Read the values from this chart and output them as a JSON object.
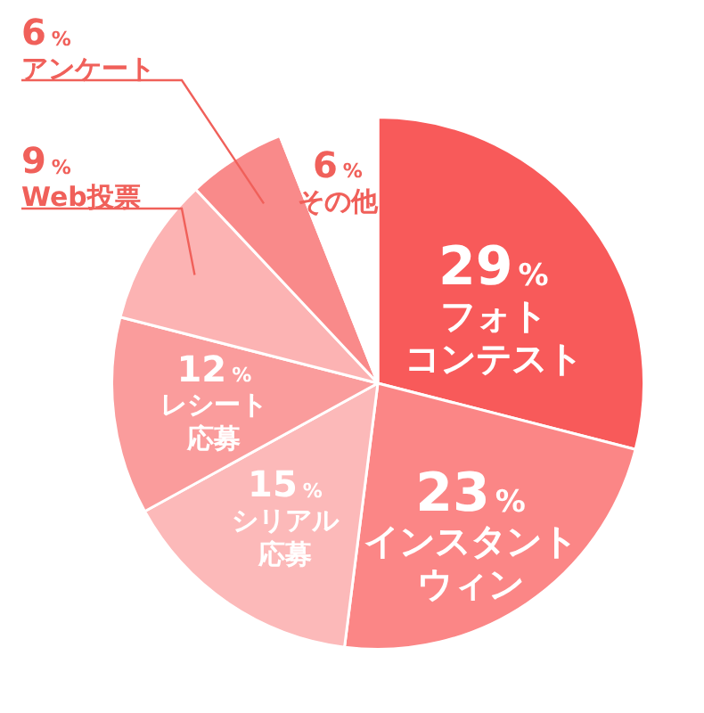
{
  "chart_data": {
    "type": "pie",
    "categories": [
      "フォトコンテスト",
      "インスタントウィン",
      "シリアル応募",
      "レシート応募",
      "Web投票",
      "アンケート",
      "その他"
    ],
    "values": [
      29,
      23,
      15,
      12,
      9,
      6,
      6
    ],
    "value_labels": [
      "29%",
      "23%",
      "15%",
      "12%",
      "9%",
      "6%",
      "6%"
    ],
    "colors": [
      "#f85a5a",
      "#fb8686",
      "#fcb9b9",
      "#fa9c9c",
      "#fcb3b3",
      "#f98a8a",
      "#ffffff"
    ],
    "legend": false
  }
}
